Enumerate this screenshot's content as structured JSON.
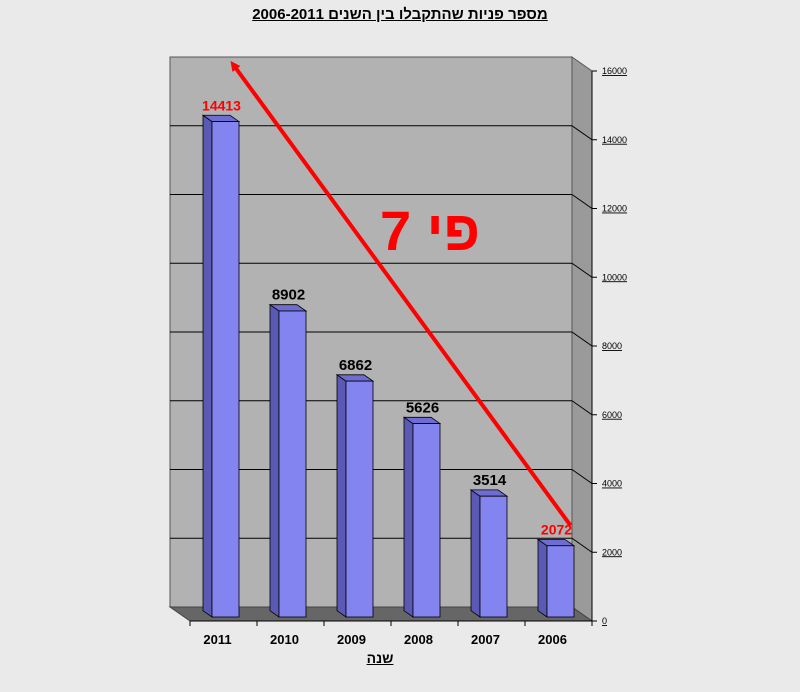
{
  "chart_data": {
    "type": "bar",
    "title": "מספר פניות שהתקבלו בין השנים 2006-2011",
    "xlabel": "שנה",
    "ylabel": "",
    "categories": [
      "2011",
      "2010",
      "2009",
      "2008",
      "2007",
      "2006"
    ],
    "values": [
      14413,
      8902,
      6862,
      5626,
      3514,
      2072
    ],
    "ylim": [
      0,
      16000
    ],
    "yticks": [
      0,
      2000,
      4000,
      6000,
      8000,
      10000,
      12000,
      14000,
      16000
    ],
    "grid": true,
    "y_axis_side": "right",
    "bar_color": "#8484f0",
    "bar_side_color": "#5a5ab4",
    "wall_color": "#b2b2b2",
    "highlight_color": "#ff0000",
    "highlighted_categories": [
      "2011",
      "2006"
    ],
    "annotation": {
      "text": "פי 7",
      "arrow_from_category": "2006",
      "arrow_to_category": "2011",
      "color": "#ff0000"
    }
  }
}
